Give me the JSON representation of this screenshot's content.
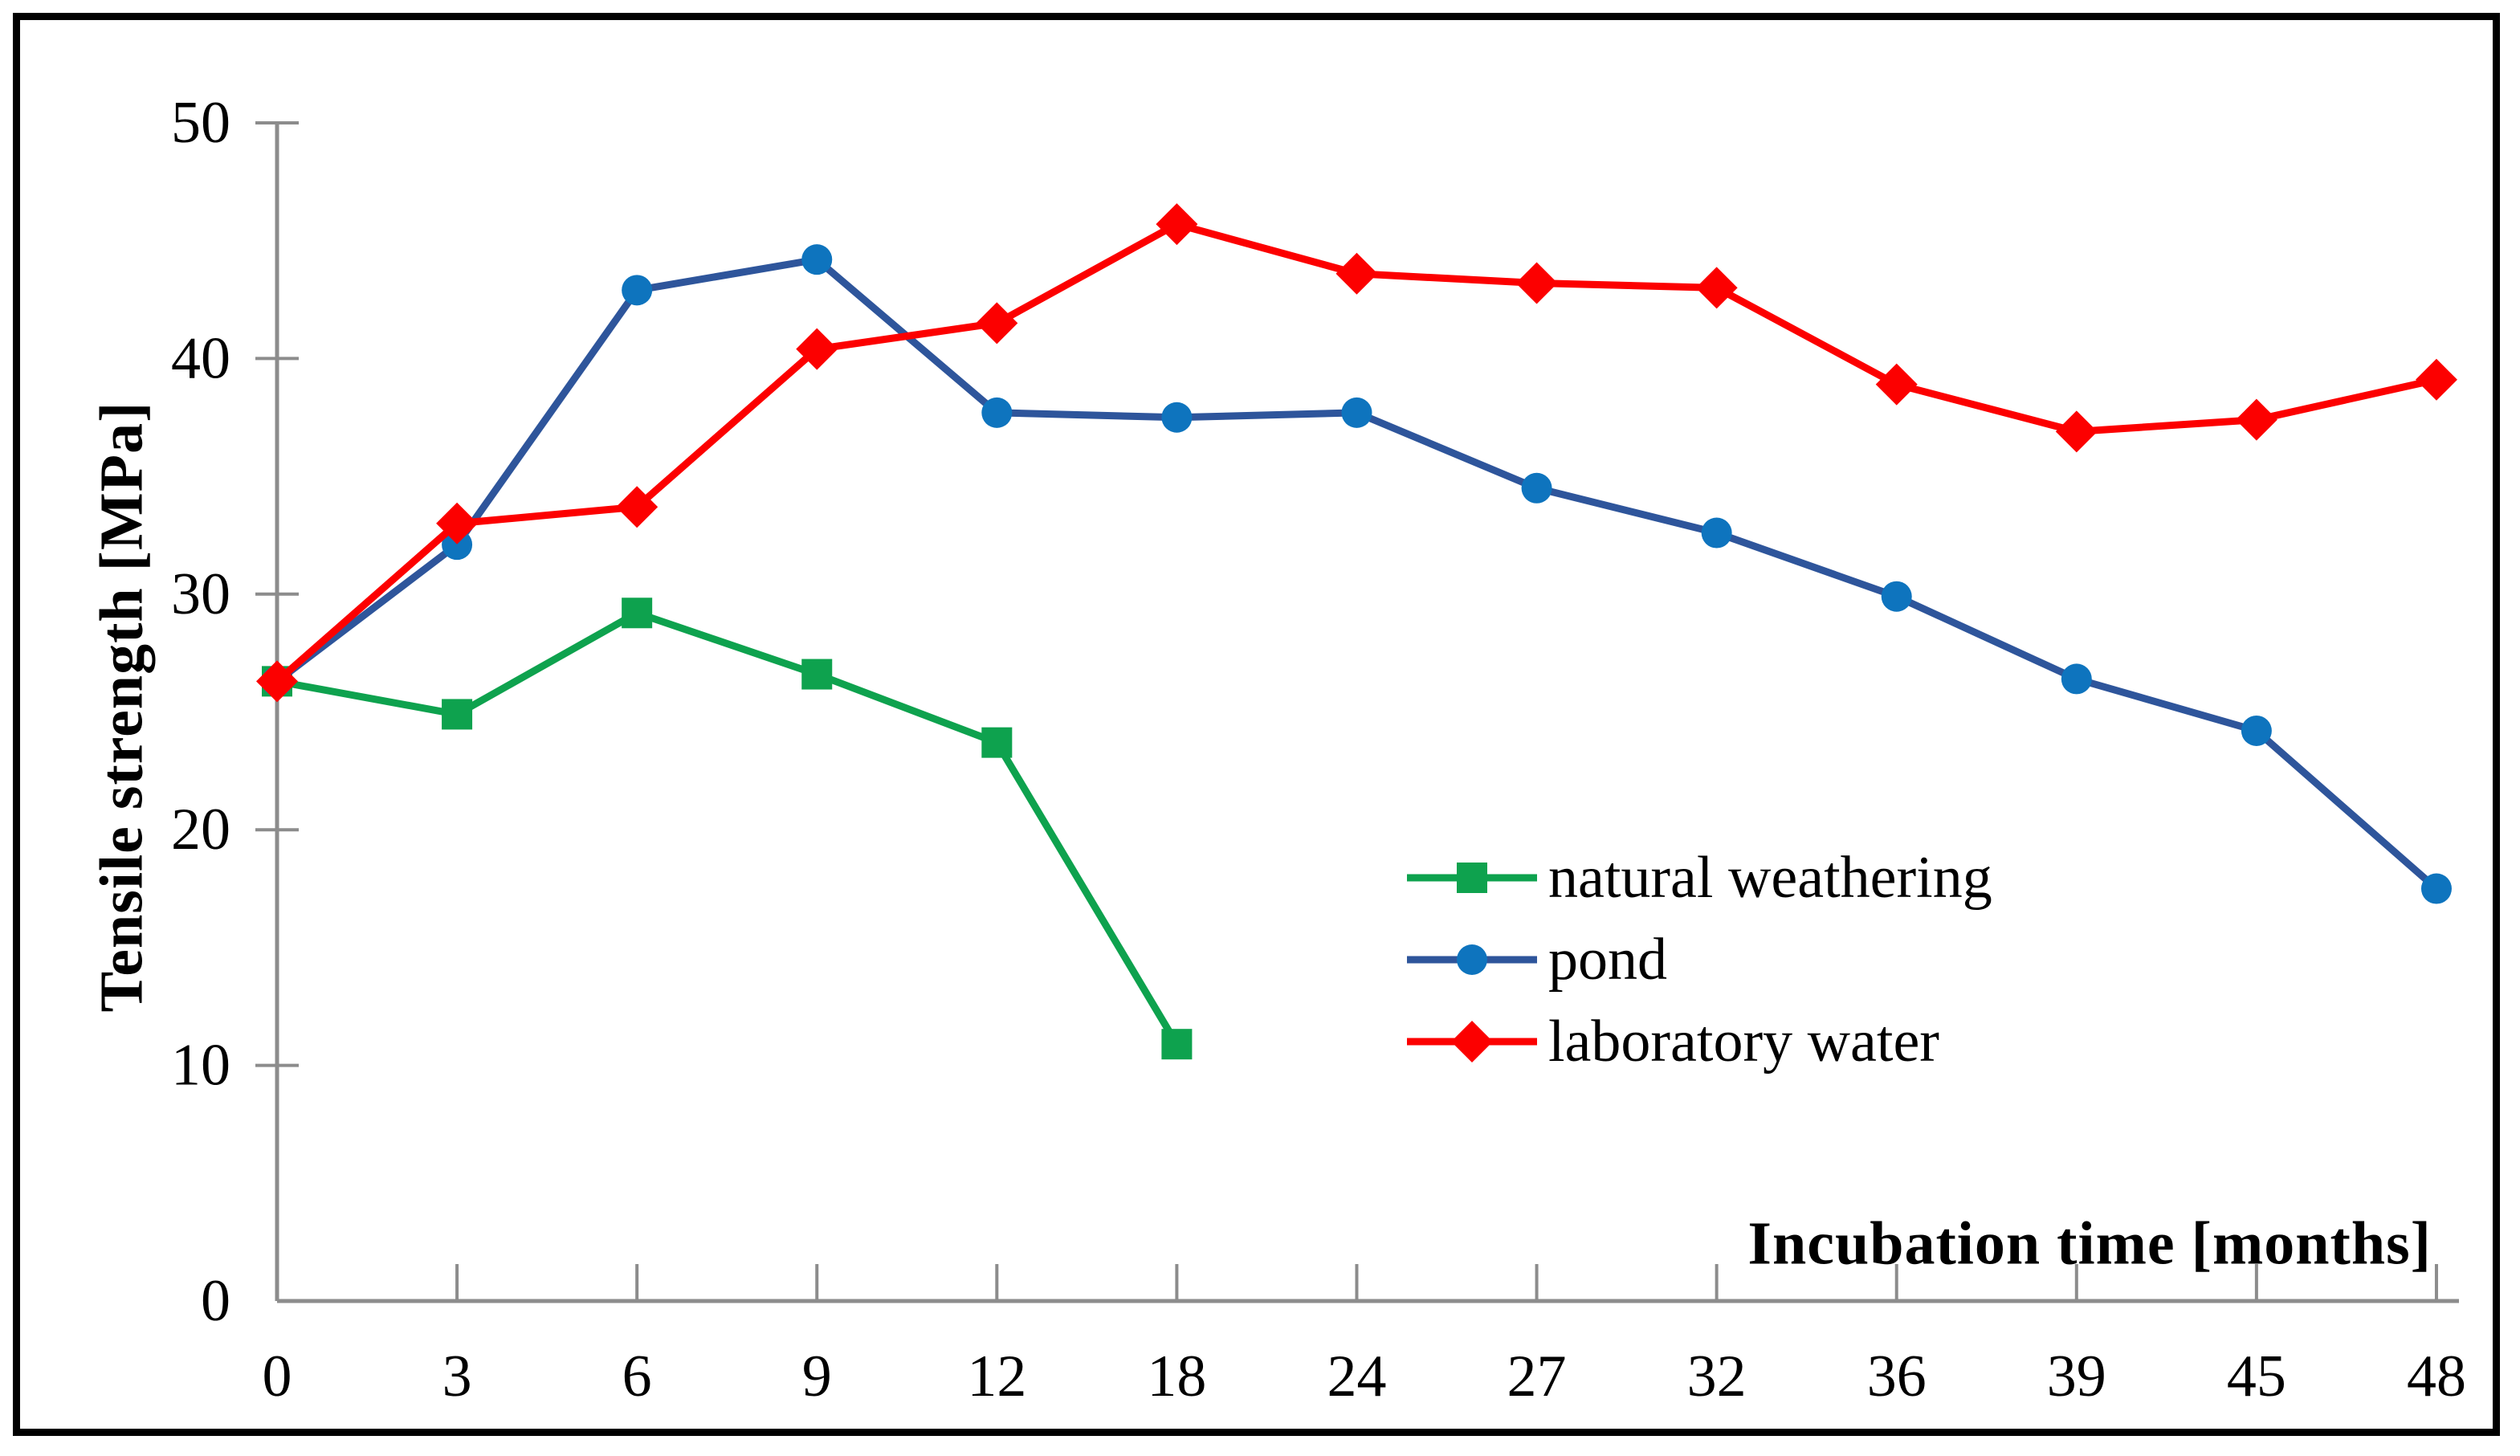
{
  "figure": {
    "background_color": "#ffffff",
    "border_color": "#000000",
    "axis_color": "#8C8C8C",
    "text_color": "#000000"
  },
  "chart_data": {
    "type": "line",
    "title": "",
    "xlabel": "Incubation time [months]",
    "ylabel": "Tensile strength [MPa]",
    "categories": [
      0,
      3,
      6,
      9,
      12,
      18,
      24,
      27,
      32,
      36,
      39,
      45,
      48
    ],
    "x_tick_labels": [
      "0",
      "3",
      "6",
      "9",
      "12",
      "18",
      "24",
      "27",
      "32",
      "36",
      "39",
      "45",
      "48"
    ],
    "y_ticks": [
      0,
      10,
      20,
      30,
      40,
      50
    ],
    "ylim": [
      0,
      50
    ],
    "grid": false,
    "legend_position": "center-right",
    "series": [
      {
        "name": "natural weathering",
        "marker": "square",
        "marker_color": "#0EA24E",
        "line_color": "#0EA24E",
        "values": [
          26.3,
          24.9,
          29.2,
          26.6,
          23.7,
          10.9,
          null,
          null,
          null,
          null,
          null,
          null,
          null
        ]
      },
      {
        "name": "pond",
        "marker": "circle",
        "marker_color": "#0E74BE",
        "line_color": "#2E559B",
        "values": [
          26.3,
          32.1,
          42.9,
          44.2,
          37.7,
          37.5,
          37.7,
          34.5,
          32.6,
          29.9,
          26.4,
          24.2,
          17.5
        ]
      },
      {
        "name": "laboratory water",
        "marker": "diamond",
        "marker_color": "#FC0000",
        "line_color": "#FC0000",
        "values": [
          26.3,
          33.0,
          33.7,
          40.4,
          41.5,
          45.7,
          43.6,
          43.2,
          43.0,
          38.9,
          36.9,
          37.4,
          39.1
        ]
      }
    ]
  }
}
